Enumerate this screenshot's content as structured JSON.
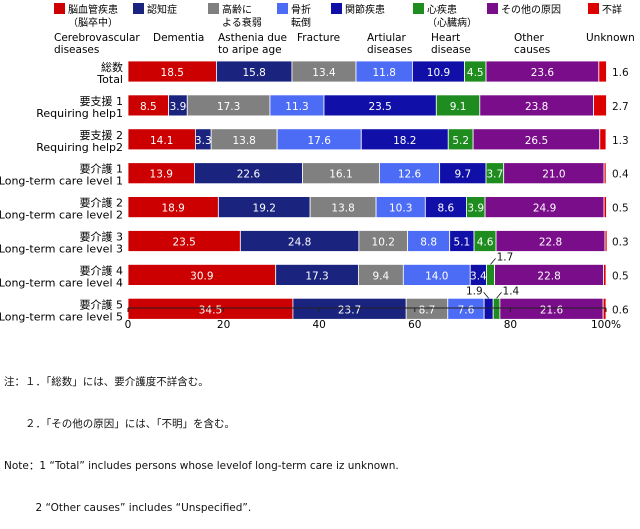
{
  "chart_data": {
    "type": "bar",
    "orientation": "horizontal",
    "stacked": true,
    "percent": true,
    "xlim": [
      0,
      100
    ],
    "x_ticks": [
      "0",
      "20",
      "40",
      "60",
      "80",
      "100%"
    ],
    "categories": [
      {
        "jp": "総数",
        "en": "Total"
      },
      {
        "jp": "要支援 1",
        "en": "Requiring help1"
      },
      {
        "jp": "要支援 2",
        "en": "Requiring help2"
      },
      {
        "jp": "要介護 1",
        "en": "Long-term care level 1"
      },
      {
        "jp": "要介護 2",
        "en": "Long-term care level 2"
      },
      {
        "jp": "要介護 3",
        "en": "Long-term care level 3"
      },
      {
        "jp": "要介護 4",
        "en": "Long-term care level 4"
      },
      {
        "jp": "要介護 5",
        "en": "Long-term care level 5"
      }
    ],
    "series": [
      {
        "legend": [
          "脳血管疾患",
          "（脳卒中）"
        ],
        "en": [
          "Cerebrovascular",
          "diseases"
        ],
        "color": "#cc0000",
        "values": [
          18.5,
          8.5,
          14.1,
          13.9,
          18.9,
          23.5,
          30.9,
          34.5
        ]
      },
      {
        "legend": [
          "認知症"
        ],
        "en": [
          "Dementia"
        ],
        "color": "#1a237e",
        "values": [
          15.8,
          3.9,
          3.3,
          22.6,
          19.2,
          24.8,
          17.3,
          23.7
        ]
      },
      {
        "legend": [
          "高齢に",
          "よる衰弱"
        ],
        "en": [
          "Asthenia due",
          "to aripe age"
        ],
        "color": "#808080",
        "values": [
          13.4,
          17.3,
          13.8,
          16.1,
          13.8,
          10.2,
          9.4,
          8.7
        ]
      },
      {
        "legend": [
          "骨折",
          "転倒"
        ],
        "en": [
          "Fracture"
        ],
        "color": "#4d6cf5",
        "values": [
          11.8,
          11.3,
          17.6,
          12.6,
          10.3,
          8.8,
          14.0,
          7.6
        ]
      },
      {
        "legend": [
          "関節疾患"
        ],
        "en": [
          "Artiular",
          "diseases"
        ],
        "color": "#1010a8",
        "values": [
          10.9,
          23.5,
          18.2,
          9.7,
          8.6,
          5.1,
          3.4,
          1.9
        ]
      },
      {
        "legend": [
          "心疾患",
          "（心臓病）"
        ],
        "en": [
          "Heart",
          "disease"
        ],
        "color": "#1e8c1e",
        "values": [
          4.5,
          9.1,
          5.2,
          3.7,
          3.9,
          4.6,
          1.7,
          1.4
        ]
      },
      {
        "legend": [
          "その他の原因"
        ],
        "en": [
          "Other",
          "causes"
        ],
        "color": "#7a0d8a",
        "values": [
          23.6,
          23.8,
          26.5,
          21.0,
          24.9,
          22.8,
          22.8,
          21.6
        ]
      },
      {
        "legend": [
          "不詳"
        ],
        "en": [
          "Unknown"
        ],
        "color": "#dd0000",
        "values": [
          1.6,
          2.7,
          1.3,
          0.4,
          0.5,
          0.3,
          0.5,
          0.6
        ]
      }
    ],
    "notes": [
      "注：１．「総数」には、要介護度不詳含む。",
      "　　２．「その他の原因」には、「不明」を含む。",
      "Note：1 “Total” includes persons whose levelof long-term care iz unknown.",
      "　　　2 “Other causes” includes “Unspecified”."
    ]
  }
}
